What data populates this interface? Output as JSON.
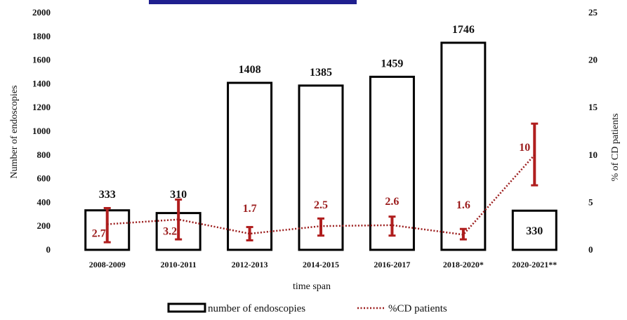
{
  "chart_data": {
    "type": "bar",
    "categories": [
      "2008-2009",
      "2010-2011",
      "2012-2013",
      "2014-2015",
      "2016-2017",
      "2018-2020*",
      "2020-2021**"
    ],
    "series": [
      {
        "name": "number of endoscopies",
        "type": "bar",
        "axis": "left",
        "values": [
          333,
          310,
          1408,
          1385,
          1459,
          1746,
          330
        ]
      },
      {
        "name": "%CD patients",
        "type": "line",
        "axis": "right",
        "style": "dotted",
        "values": [
          2.7,
          3.2,
          1.7,
          2.5,
          2.6,
          1.6,
          10
        ],
        "error_low": [
          0.8,
          1.1,
          1.0,
          1.5,
          1.5,
          1.1,
          6.8
        ],
        "error_high": [
          4.4,
          5.3,
          2.4,
          3.3,
          3.5,
          2.2,
          13.3
        ]
      }
    ],
    "xlabel": "time span",
    "ylabel": "Number of endoscopies",
    "y2label": "% of CD patients",
    "ylim": [
      0,
      2000
    ],
    "y2lim": [
      0,
      25
    ],
    "yticks": [
      "0",
      "200",
      "400",
      "600",
      "800",
      "1000",
      "1200",
      "1400",
      "1600",
      "1800",
      "2000"
    ],
    "y2ticks": [
      "0",
      "5",
      "10",
      "15",
      "20",
      "25"
    ],
    "bar_labels": [
      "333",
      "310",
      "1408",
      "1385",
      "1459",
      "1746",
      "330"
    ],
    "pct_labels": [
      "2.7",
      "3.2",
      "1.7",
      "2.5",
      "2.6",
      "1.6",
      "10"
    ],
    "legend": [
      "number of endoscopies",
      "%CD patients"
    ],
    "legend_position": "bottom-center",
    "grid": false,
    "colors": {
      "bar_edge": "#000000",
      "bar_fill": "#ffffff",
      "line": "#9b1c1c",
      "error_bar": "#b01e1e",
      "top_bar": "#1f1f8f"
    }
  }
}
